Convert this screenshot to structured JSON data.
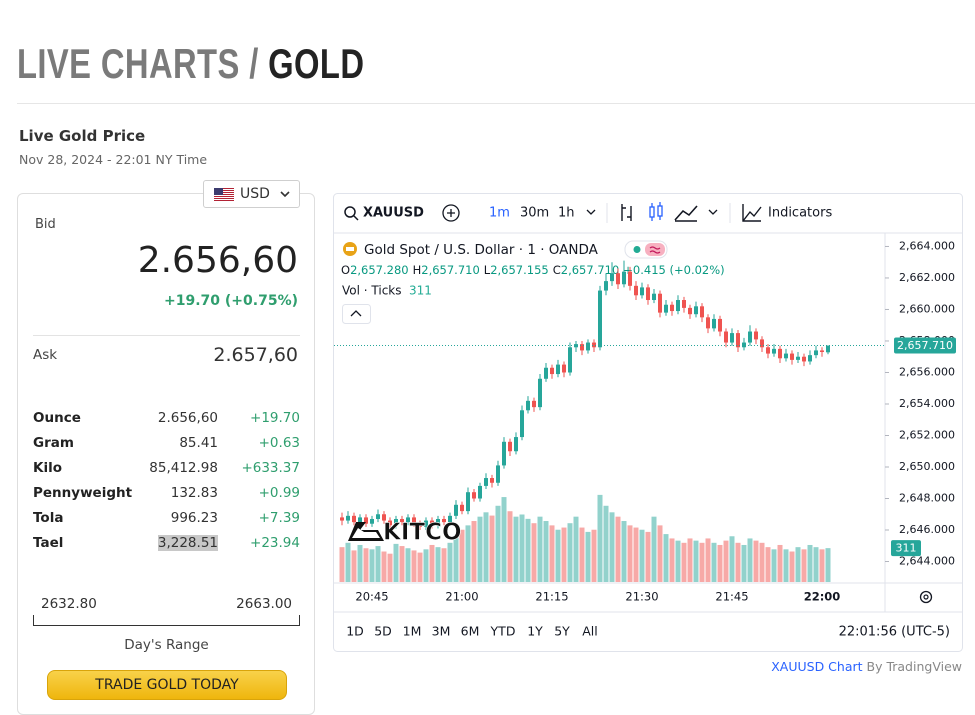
{
  "header": {
    "title_prefix": "LIVE CHARTS /",
    "title_main": "GOLD"
  },
  "price_panel": {
    "title": "Live Gold Price",
    "timestamp": "Nov 28, 2024 - 22:01 NY Time",
    "currency": "USD",
    "bid_label": "Bid",
    "bid": "2.656,60",
    "change": "+19.70 (+0.75%)",
    "ask_label": "Ask",
    "ask": "2.657,60",
    "rows": [
      [
        "Ounce",
        "2.656,60",
        "+19.70"
      ],
      [
        "Gram",
        "85.41",
        "+0.63"
      ],
      [
        "Kilo",
        "85,412.98",
        "+633.37"
      ],
      [
        "Pennyweight",
        "132.83",
        "+0.99"
      ],
      [
        "Tola",
        "996.23",
        "+7.39"
      ],
      [
        "Tael",
        "3,228.51",
        "+23.94"
      ]
    ],
    "day_low": "2632.80",
    "day_high": "2663.00",
    "range_label": "Day's Range",
    "button": "TRADE GOLD TODAY"
  },
  "toolbar": {
    "symbol": "XAUUSD",
    "intervals": [
      "1m",
      "30m",
      "1h"
    ],
    "indicators": "Indicators"
  },
  "chart_data": {
    "type": "candlestick",
    "title": "Gold Spot / U.S. Dollar · 1 · OANDA",
    "ohlc_legend": [
      {
        "key": "O",
        "value": "2,657.280"
      },
      {
        "key": "H",
        "value": "2,657.710"
      },
      {
        "key": "L",
        "value": "2,657.155"
      },
      {
        "key": "C",
        "value": "2,657.710"
      }
    ],
    "change": "+0.415 (+0.02%)",
    "volume_label": "Vol · Ticks",
    "last_price_label": "2,657.710",
    "watermark": "KITCO",
    "up_color": "#26a69a",
    "down_color": "#ef5350",
    "ylim": [
      2642.7,
      2664.6
    ],
    "yticks": [
      {
        "value": 2644,
        "label": "2,644.000"
      },
      {
        "value": 2646,
        "label": "2,646.000"
      },
      {
        "value": 2648,
        "label": "2,648.000"
      },
      {
        "value": 2650,
        "label": "2,650.000"
      },
      {
        "value": 2652,
        "label": "2,652.000"
      },
      {
        "value": 2654,
        "label": "2,654.000"
      },
      {
        "value": 2656,
        "label": "2,656.000"
      },
      {
        "value": 2658,
        "label": "2,658.000"
      },
      {
        "value": 2660,
        "label": "2,660.000"
      },
      {
        "value": 2662,
        "label": "2,662.000"
      },
      {
        "value": 2664,
        "label": "2,664.000"
      }
    ],
    "vlim": [
      0,
      900
    ],
    "categories": [
      null,
      null,
      null,
      null,
      null,
      "20:45",
      null,
      null,
      null,
      null,
      null,
      null,
      null,
      null,
      null,
      null,
      null,
      null,
      null,
      null,
      "21:00",
      null,
      null,
      null,
      null,
      null,
      null,
      null,
      null,
      null,
      null,
      null,
      null,
      null,
      null,
      "21:15",
      null,
      null,
      null,
      null,
      null,
      null,
      null,
      null,
      null,
      null,
      null,
      null,
      null,
      null,
      "21:30",
      null,
      null,
      null,
      null,
      null,
      null,
      null,
      null,
      null,
      null,
      null,
      null,
      null,
      null,
      "21:45",
      null,
      null,
      null,
      null,
      null,
      null,
      null,
      null,
      null,
      null,
      null,
      null,
      null,
      null,
      "22:00",
      null
    ],
    "ohlc": [
      [
        2646.8,
        2647.1,
        2646.3,
        2646.6
      ],
      [
        2646.6,
        2647.2,
        2646.4,
        2646.9
      ],
      [
        2646.9,
        2647.1,
        2646.3,
        2646.5
      ],
      [
        2646.5,
        2647.0,
        2646.3,
        2646.8
      ],
      [
        2646.8,
        2647.0,
        2646.2,
        2646.4
      ],
      [
        2646.4,
        2646.9,
        2646.2,
        2646.7
      ],
      [
        2646.7,
        2647.3,
        2646.5,
        2647.0
      ],
      [
        2647.0,
        2647.2,
        2646.4,
        2646.6
      ],
      [
        2646.6,
        2646.8,
        2646.1,
        2646.3
      ],
      [
        2646.3,
        2646.9,
        2646.1,
        2646.7
      ],
      [
        2646.7,
        2646.9,
        2646.3,
        2646.5
      ],
      [
        2646.5,
        2647.0,
        2646.3,
        2646.8
      ],
      [
        2646.8,
        2647.0,
        2646.2,
        2646.4
      ],
      [
        2646.4,
        2646.6,
        2646.0,
        2646.2
      ],
      [
        2646.2,
        2646.8,
        2646.0,
        2646.6
      ],
      [
        2646.6,
        2646.8,
        2646.1,
        2646.3
      ],
      [
        2646.3,
        2646.9,
        2646.1,
        2646.7
      ],
      [
        2646.7,
        2646.9,
        2646.3,
        2646.5
      ],
      [
        2646.5,
        2647.1,
        2646.3,
        2646.9
      ],
      [
        2646.9,
        2647.9,
        2646.7,
        2647.6
      ],
      [
        2647.6,
        2647.8,
        2647.0,
        2647.2
      ],
      [
        2647.2,
        2648.7,
        2647.0,
        2648.4
      ],
      [
        2648.4,
        2648.6,
        2647.8,
        2648.0
      ],
      [
        2648.0,
        2649.0,
        2647.8,
        2648.8
      ],
      [
        2648.8,
        2649.6,
        2648.6,
        2649.3
      ],
      [
        2649.3,
        2649.5,
        2648.7,
        2649.0
      ],
      [
        2649.0,
        2650.4,
        2648.8,
        2650.1
      ],
      [
        2650.1,
        2651.9,
        2649.9,
        2651.6
      ],
      [
        2651.6,
        2651.8,
        2650.7,
        2651.0
      ],
      [
        2651.0,
        2652.2,
        2650.8,
        2651.9
      ],
      [
        2651.9,
        2653.9,
        2651.7,
        2653.6
      ],
      [
        2653.6,
        2654.5,
        2653.4,
        2654.2
      ],
      [
        2654.2,
        2654.4,
        2653.5,
        2653.8
      ],
      [
        2653.8,
        2655.9,
        2653.6,
        2655.6
      ],
      [
        2655.6,
        2656.6,
        2655.4,
        2656.3
      ],
      [
        2656.3,
        2656.5,
        2655.6,
        2655.9
      ],
      [
        2655.9,
        2656.8,
        2655.7,
        2656.5
      ],
      [
        2656.5,
        2656.7,
        2655.7,
        2656.0
      ],
      [
        2656.0,
        2657.9,
        2655.8,
        2657.6
      ],
      [
        2657.6,
        2658.0,
        2657.3,
        2657.8
      ],
      [
        2657.8,
        2658.0,
        2657.1,
        2657.4
      ],
      [
        2657.4,
        2658.1,
        2657.2,
        2657.9
      ],
      [
        2657.9,
        2658.1,
        2657.3,
        2657.6
      ],
      [
        2657.6,
        2661.5,
        2657.4,
        2661.2
      ],
      [
        2661.2,
        2662.3,
        2660.9,
        2661.8
      ],
      [
        2661.8,
        2663.0,
        2661.5,
        2662.3
      ],
      [
        2662.3,
        2662.6,
        2661.3,
        2661.6
      ],
      [
        2661.6,
        2663.1,
        2661.4,
        2662.4
      ],
      [
        2662.4,
        2662.7,
        2661.2,
        2661.5
      ],
      [
        2661.5,
        2661.8,
        2660.6,
        2660.9
      ],
      [
        2660.9,
        2661.7,
        2660.7,
        2661.4
      ],
      [
        2661.4,
        2661.6,
        2660.3,
        2660.6
      ],
      [
        2660.6,
        2661.3,
        2660.4,
        2661.0
      ],
      [
        2661.0,
        2661.2,
        2659.5,
        2659.8
      ],
      [
        2659.8,
        2660.6,
        2659.6,
        2660.3
      ],
      [
        2660.3,
        2660.5,
        2659.6,
        2659.9
      ],
      [
        2659.9,
        2660.9,
        2659.7,
        2660.6
      ],
      [
        2660.6,
        2660.8,
        2659.8,
        2660.1
      ],
      [
        2660.1,
        2660.3,
        2659.4,
        2659.7
      ],
      [
        2659.7,
        2660.5,
        2659.5,
        2660.2
      ],
      [
        2660.2,
        2660.4,
        2659.2,
        2659.5
      ],
      [
        2659.5,
        2659.7,
        2658.5,
        2658.8
      ],
      [
        2658.8,
        2659.7,
        2658.6,
        2659.4
      ],
      [
        2659.4,
        2659.6,
        2658.3,
        2658.6
      ],
      [
        2658.6,
        2658.8,
        2657.6,
        2657.9
      ],
      [
        2657.9,
        2658.8,
        2657.7,
        2658.5
      ],
      [
        2658.5,
        2658.7,
        2657.3,
        2657.6
      ],
      [
        2657.6,
        2658.2,
        2657.4,
        2657.9
      ],
      [
        2657.9,
        2659.0,
        2657.7,
        2658.6
      ],
      [
        2658.6,
        2658.8,
        2657.8,
        2658.1
      ],
      [
        2658.1,
        2658.3,
        2657.3,
        2657.6
      ],
      [
        2657.6,
        2657.8,
        2656.9,
        2657.2
      ],
      [
        2657.2,
        2657.8,
        2657.0,
        2657.5
      ],
      [
        2657.5,
        2657.7,
        2656.6,
        2656.9
      ],
      [
        2656.9,
        2657.5,
        2656.7,
        2657.2
      ],
      [
        2657.2,
        2657.4,
        2656.5,
        2656.8
      ],
      [
        2656.8,
        2657.3,
        2656.6,
        2657.0
      ],
      [
        2657.0,
        2657.2,
        2656.4,
        2656.7
      ],
      [
        2656.7,
        2657.4,
        2656.5,
        2657.1
      ],
      [
        2657.1,
        2657.7,
        2656.9,
        2657.4
      ],
      [
        2657.4,
        2657.6,
        2657.0,
        2657.3
      ],
      [
        2657.28,
        2657.71,
        2657.155,
        2657.71
      ]
    ],
    "volumes": [
      320,
      360,
      290,
      340,
      310,
      300,
      330,
      280,
      260,
      350,
      330,
      310,
      290,
      270,
      300,
      340,
      320,
      310,
      360,
      420,
      480,
      520,
      560,
      600,
      640,
      610,
      700,
      780,
      650,
      600,
      620,
      580,
      540,
      600,
      560,
      520,
      480,
      500,
      540,
      600,
      500,
      460,
      480,
      800,
      700,
      640,
      600,
      560,
      520,
      500,
      480,
      460,
      600,
      520,
      440,
      400,
      380,
      360,
      400,
      380,
      360,
      400,
      360,
      340,
      380,
      420,
      360,
      340,
      400,
      380,
      360,
      320,
      300,
      340,
      300,
      280,
      320,
      300,
      340,
      320,
      300,
      311
    ]
  },
  "ranges": [
    "1D",
    "5D",
    "1M",
    "3M",
    "6M",
    "YTD",
    "1Y",
    "5Y",
    "All"
  ],
  "clock": "22:01:56 (UTC-5)",
  "footer": {
    "link": "XAUUSD Chart",
    "by": "By TradingView"
  }
}
